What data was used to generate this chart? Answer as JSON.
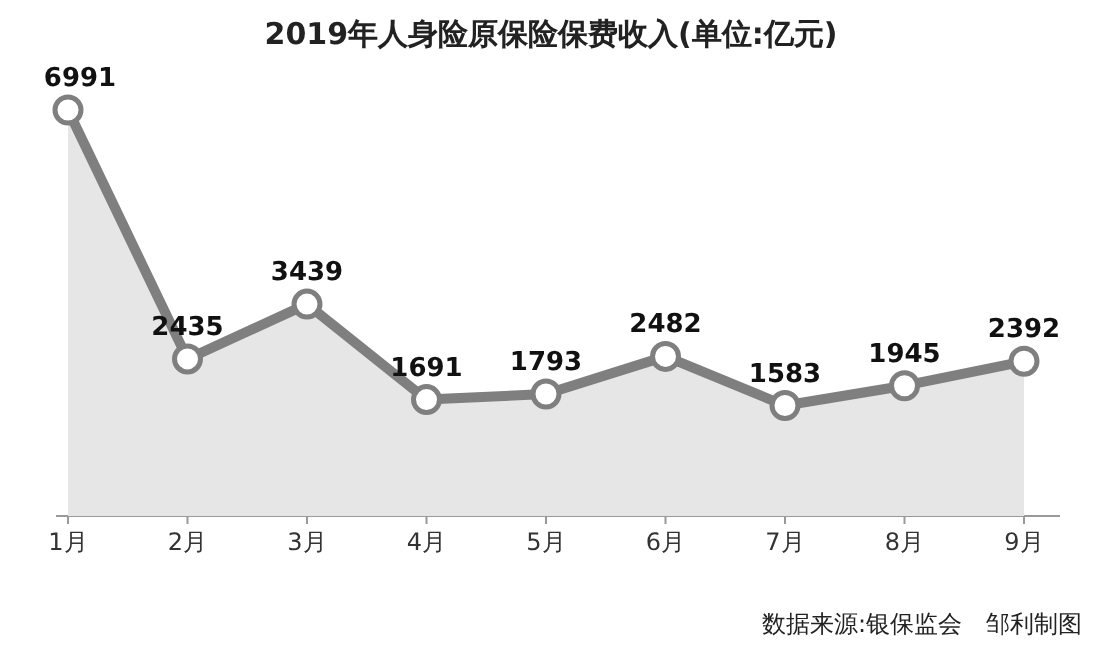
{
  "chart_data": {
    "type": "area",
    "title": "2019年人身险原保险保费收入(单位:亿元)",
    "categories": [
      "1月",
      "2月",
      "3月",
      "4月",
      "5月",
      "6月",
      "7月",
      "8月",
      "9月"
    ],
    "series": [
      {
        "color": "#7f7f7f",
        "values": [
          6991,
          2435,
          3439,
          1691,
          1793,
          2482,
          1583,
          1945,
          2392
        ]
      }
    ],
    "data_labels": true,
    "marker": "circle",
    "annotations": [
      "数据来源:银保监会　邹利制图"
    ]
  }
}
